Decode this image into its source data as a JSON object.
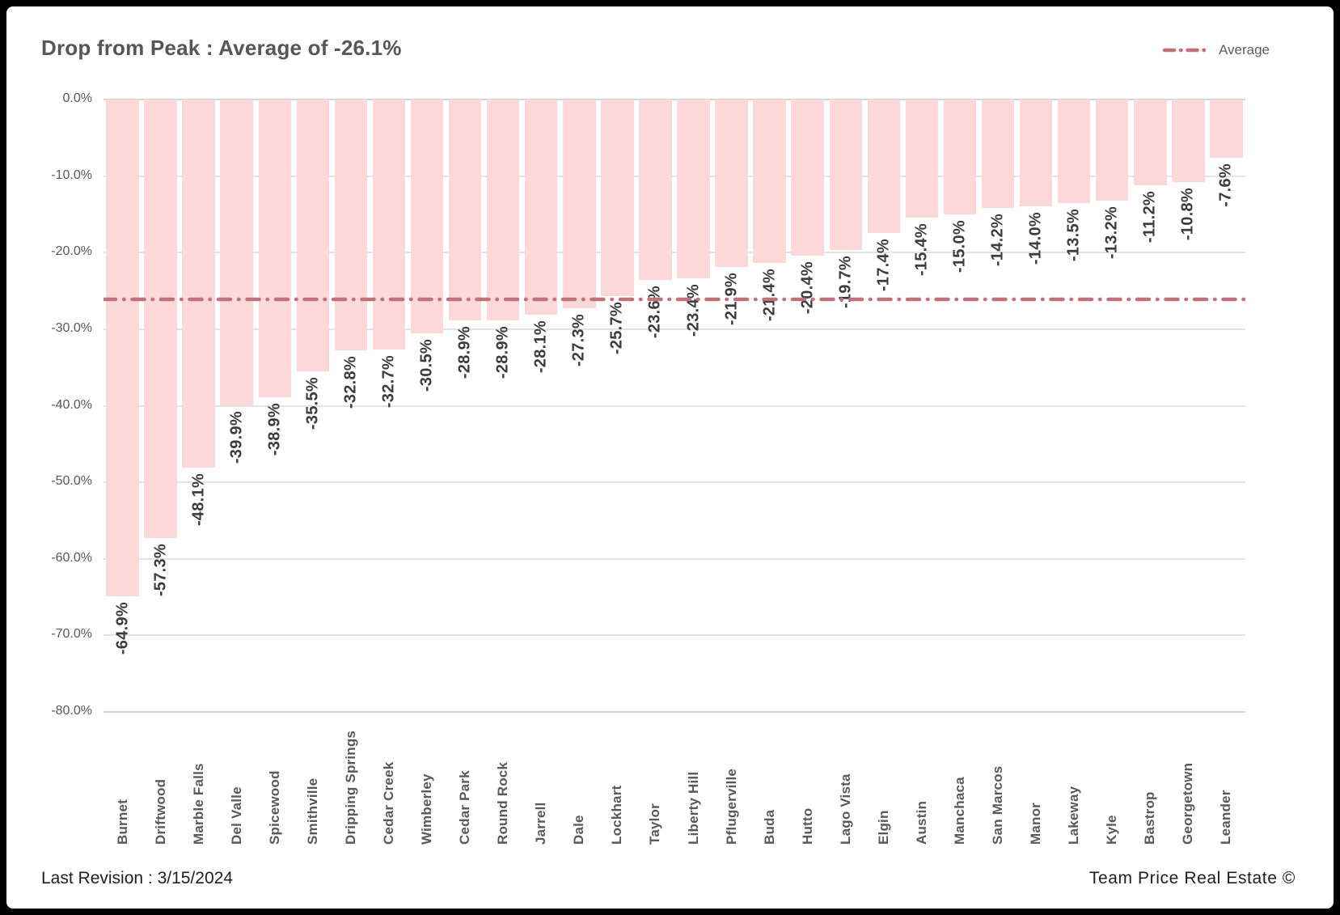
{
  "title": "Drop from Peak : Average of -26.1%",
  "legend": {
    "label": "Average"
  },
  "footer": {
    "left": "Last Revision : 3/15/2024",
    "right": "Team Price Real Estate ©"
  },
  "colors": {
    "bar": "#fcd8d8",
    "average_line": "#bf727b",
    "title_text": "#565656",
    "axis_text": "#595959",
    "value_text": "#3c3c3c",
    "gridline": "#e4e4e4"
  },
  "chart_data": {
    "type": "bar",
    "title": "Drop from Peak : Average of -26.1%",
    "categories": [
      "Burnet",
      "Driftwood",
      "Marble Falls",
      "Del Valle",
      "Spicewood",
      "Smithville",
      "Dripping Springs",
      "Cedar Creek",
      "Wimberley",
      "Cedar Park",
      "Round Rock",
      "Jarrell",
      "Dale",
      "Lockhart",
      "Taylor",
      "Liberty Hill",
      "Pflugerville",
      "Buda",
      "Hutto",
      "Lago Vista",
      "Elgin",
      "Austin",
      "Manchaca",
      "San Marcos",
      "Manor",
      "Lakeway",
      "Kyle",
      "Bastrop",
      "Georgetown",
      "Leander"
    ],
    "values": [
      -64.9,
      -57.3,
      -48.1,
      -39.9,
      -38.9,
      -35.5,
      -32.8,
      -32.7,
      -30.5,
      -28.9,
      -28.9,
      -28.1,
      -27.3,
      -25.7,
      -23.6,
      -23.4,
      -21.9,
      -21.4,
      -20.4,
      -19.7,
      -17.4,
      -15.4,
      -15.0,
      -14.2,
      -14.0,
      -13.5,
      -13.2,
      -11.2,
      -10.8,
      -7.6
    ],
    "value_labels": [
      "-64.9%",
      "-57.3%",
      "-48.1%",
      "-39.9%",
      "-38.9%",
      "-35.5%",
      "-32.8%",
      "-32.7%",
      "-30.5%",
      "-28.9%",
      "-28.9%",
      "-28.1%",
      "-27.3%",
      "-25.7%",
      "-23.6%",
      "-23.4%",
      "-21.9%",
      "-21.4%",
      "-20.4%",
      "-19.7%",
      "-17.4%",
      "-15.4%",
      "-15.0%",
      "-14.2%",
      "-14.0%",
      "-13.5%",
      "-13.2%",
      "-11.2%",
      "-10.8%",
      "-7.6%"
    ],
    "average": -26.1,
    "ylim": [
      -80,
      0
    ],
    "y_ticks": [
      "0.0%",
      "-10.0%",
      "-20.0%",
      "-30.0%",
      "-40.0%",
      "-50.0%",
      "-60.0%",
      "-70.0%",
      "-80.0%"
    ],
    "legend": [
      "Average"
    ],
    "legend_position": "top-right",
    "grid": true
  }
}
